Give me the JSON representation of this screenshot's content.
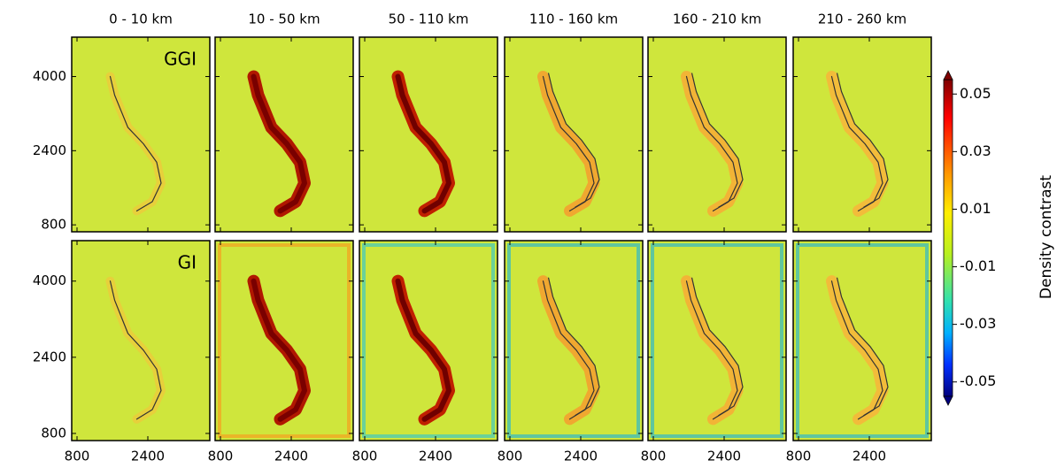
{
  "chart_data": {
    "type": "heatmap-grid",
    "columns": [
      "0 - 10 km",
      "10 - 50 km",
      "50 - 110 km",
      "110 - 160 km",
      "160 - 210 km",
      "210 - 260 km"
    ],
    "rows": [
      "GGI",
      "GI"
    ],
    "xticks": [
      800,
      2400
    ],
    "xlim": [
      680,
      3800
    ],
    "yticks": [
      800,
      2400,
      4000
    ],
    "ylim": [
      650,
      4850
    ],
    "colorbar": {
      "label": "Density contrast",
      "ticks": [
        0.05,
        0.03,
        0.01,
        -0.01,
        -0.03,
        -0.05
      ],
      "lim": [
        -0.055,
        0.055
      ]
    }
  }
}
